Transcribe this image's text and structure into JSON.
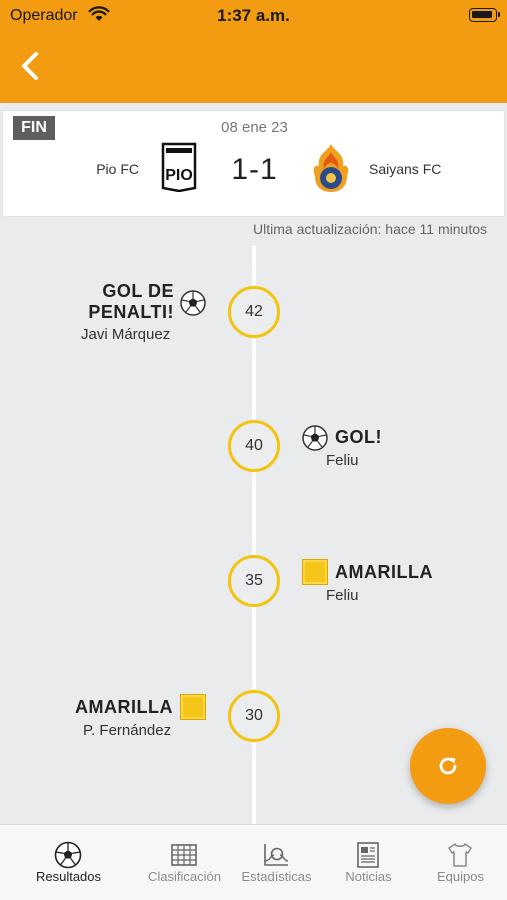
{
  "status_bar": {
    "carrier": "Operador",
    "time": "1:37 a.m."
  },
  "match": {
    "status": "FIN",
    "date": "08 ene 23",
    "home_team": "Pio FC",
    "away_team": "Saiyans FC",
    "score": "1-1",
    "home_crest_text": "PIO",
    "last_update": "Ultima actualización: hace 11 minutos"
  },
  "events": [
    {
      "minute": "42",
      "side": "left",
      "type": "goal",
      "title_line1": "GOL DE",
      "title_line2": "PENALTI!",
      "player": "Javi Márquez"
    },
    {
      "minute": "40",
      "side": "right",
      "type": "goal",
      "title": "GOL!",
      "player": "Feliu"
    },
    {
      "minute": "35",
      "side": "right",
      "type": "yellow-card",
      "title": "AMARILLA",
      "player": "Feliu"
    },
    {
      "minute": "30",
      "side": "left",
      "type": "yellow-card",
      "title": "AMARILLA",
      "player": "P. Fernández"
    }
  ],
  "tabs": [
    {
      "label": "Resultados",
      "icon": "soccer-ball-icon",
      "active": true
    },
    {
      "label": "Clasificación",
      "icon": "table-icon",
      "active": false
    },
    {
      "label": "Estadísticas",
      "icon": "stats-icon",
      "active": false
    },
    {
      "label": "Noticias",
      "icon": "newspaper-icon",
      "active": false
    },
    {
      "label": "Equipos",
      "icon": "shirt-icon",
      "active": false
    }
  ],
  "colors": {
    "accent": "#f39c12",
    "minute_ring": "#f2c40f",
    "yellow_card": "#f5c518"
  }
}
